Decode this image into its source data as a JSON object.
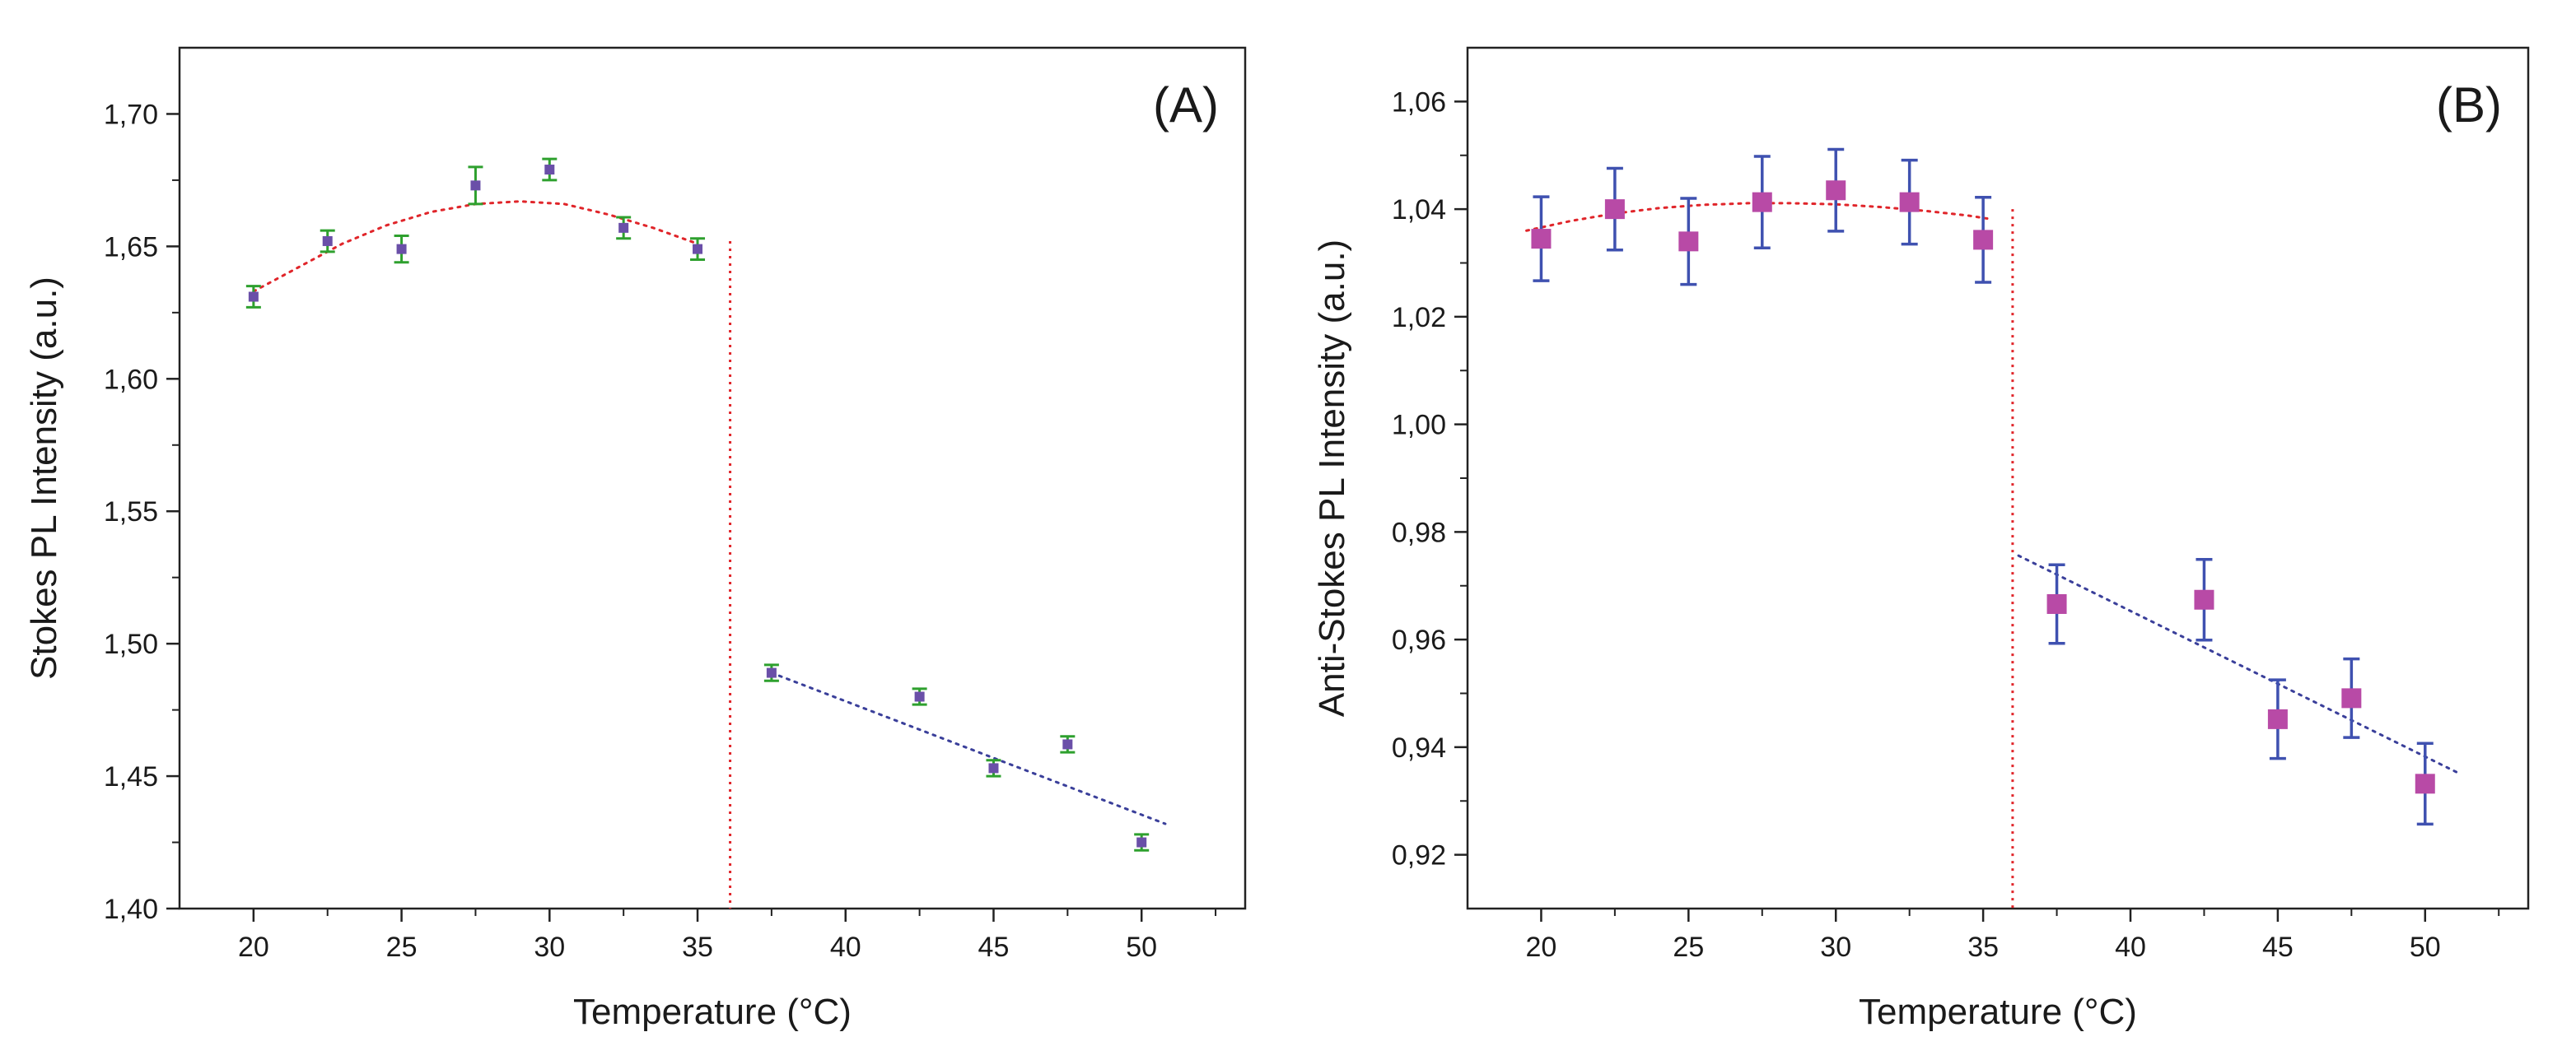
{
  "chart_data": [
    {
      "type": "scatter",
      "panel_label": "(A)",
      "xlabel": "Temperature (°C)",
      "ylabel": "Stokes PL Intensity (a.u.)",
      "xlim": [
        17.5,
        53.5
      ],
      "ylim": [
        1.4,
        1.725
      ],
      "x_ticks": [
        20,
        25,
        30,
        35,
        40,
        45,
        50
      ],
      "x_tick_labels": [
        "20",
        "25",
        "30",
        "35",
        "40",
        "45",
        "50"
      ],
      "y_ticks": [
        1.4,
        1.45,
        1.5,
        1.55,
        1.6,
        1.65,
        1.7
      ],
      "y_tick_labels": [
        "1,40",
        "1,45",
        "1,50",
        "1,55",
        "1,60",
        "1,65",
        "1,70"
      ],
      "grid": false,
      "colors": {
        "marker": "#6a4fa8",
        "errorbar": "#2ea02e",
        "fit_low": "#e0252a",
        "fit_high": "#3a3f9a",
        "transition": "#e0252a"
      },
      "series": [
        {
          "x": [
            20,
            22.5,
            25,
            27.5,
            30,
            32.5,
            35,
            37.5,
            42.5,
            45,
            47.5,
            50
          ],
          "y": [
            1.631,
            1.652,
            1.649,
            1.673,
            1.679,
            1.657,
            1.649,
            1.489,
            1.48,
            1.453,
            1.462,
            1.425
          ],
          "yerr": [
            0.004,
            0.004,
            0.005,
            0.007,
            0.004,
            0.004,
            0.004,
            0.003,
            0.003,
            0.003,
            0.003,
            0.003
          ]
        }
      ],
      "fits": [
        {
          "kind": "quadratic",
          "x": [
            20,
            21.5,
            23,
            24.5,
            26,
            27.5,
            29,
            30.5,
            32,
            33.5,
            35
          ],
          "y": [
            1.633,
            1.642,
            1.651,
            1.658,
            1.663,
            1.666,
            1.667,
            1.666,
            1.662,
            1.657,
            1.651
          ]
        },
        {
          "kind": "linear",
          "x": [
            37.5,
            50.8
          ],
          "y": [
            1.489,
            1.432
          ]
        }
      ],
      "transition": {
        "x": 36.1,
        "y_top": 1.652,
        "y_bottom": 1.4
      }
    },
    {
      "type": "scatter",
      "panel_label": "(B)",
      "xlabel": "Temperature (°C)",
      "ylabel": "Anti-Stokes PL Intensity (a.u.)",
      "xlim": [
        17.5,
        53.5
      ],
      "ylim": [
        0.91,
        1.07
      ],
      "x_ticks": [
        20,
        25,
        30,
        35,
        40,
        45,
        50
      ],
      "x_tick_labels": [
        "20",
        "25",
        "30",
        "35",
        "40",
        "45",
        "50"
      ],
      "y_ticks": [
        0.92,
        0.94,
        0.96,
        0.98,
        1.0,
        1.02,
        1.04,
        1.06
      ],
      "y_tick_labels": [
        "0,92",
        "0,94",
        "0,96",
        "0,98",
        "1,00",
        "1,02",
        "1,04",
        "1,06"
      ],
      "grid": false,
      "colors": {
        "marker": "#b84aa6",
        "errorbar": "#3f51b0",
        "fit_low": "#e0252a",
        "fit_high": "#3a3f9a",
        "transition": "#e0252a"
      },
      "series": [
        {
          "x": [
            20,
            22.5,
            25,
            27.5,
            30,
            32.5,
            35,
            37.5,
            42.5,
            45,
            47.5,
            50
          ],
          "y": [
            1.0345,
            1.04,
            1.034,
            1.0413,
            1.0435,
            1.0413,
            1.0343,
            0.9666,
            0.9674,
            0.9452,
            0.9491,
            0.9332
          ],
          "yerr": [
            0.0078,
            0.0076,
            0.008,
            0.0085,
            0.0076,
            0.0078,
            0.0079,
            0.0073,
            0.0075,
            0.0073,
            0.0073,
            0.0075
          ]
        }
      ],
      "fits": [
        {
          "kind": "quadratic",
          "x": [
            19.5,
            21,
            22.5,
            24,
            25.5,
            27,
            28.5,
            30,
            31.5,
            33,
            34.5,
            35.2
          ],
          "y": [
            1.036,
            1.0378,
            1.0392,
            1.0402,
            1.0408,
            1.0411,
            1.0411,
            1.0409,
            1.0404,
            1.0397,
            1.0388,
            1.0382
          ]
        },
        {
          "kind": "linear",
          "x": [
            36.2,
            51.2
          ],
          "y": [
            0.9756,
            0.935
          ]
        }
      ],
      "transition": {
        "x": 36.0,
        "y_top": 1.04,
        "y_bottom": 0.91
      }
    }
  ]
}
